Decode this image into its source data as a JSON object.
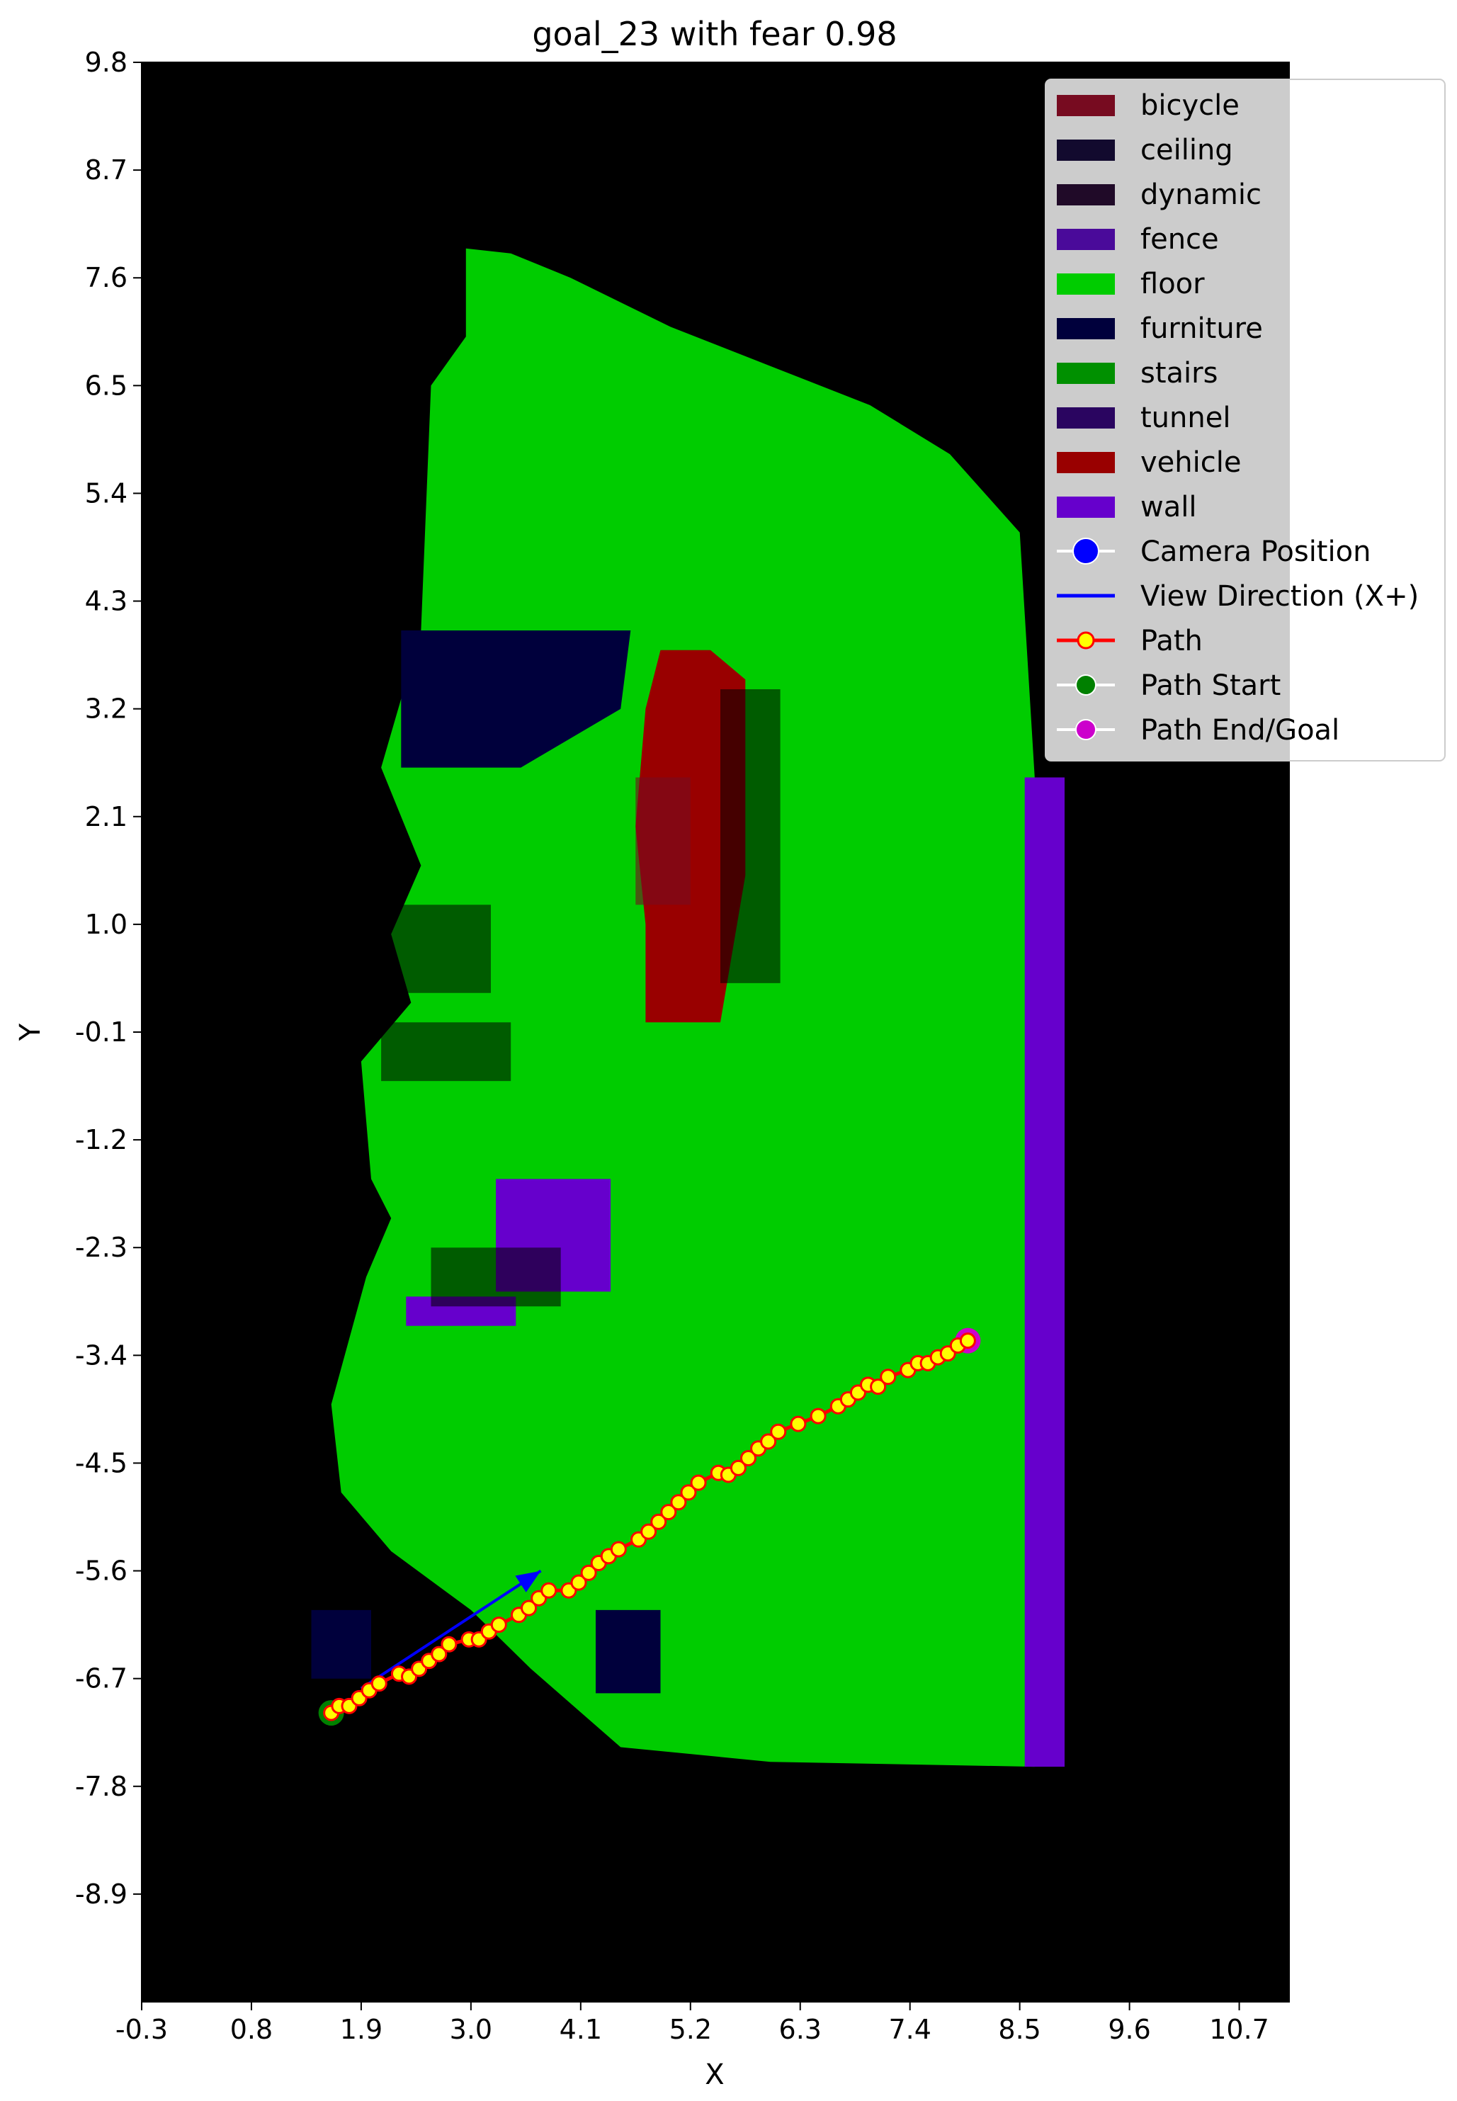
{
  "chart_data": {
    "type": "scatter",
    "title": "goal_23 with fear 0.98",
    "xlabel": "X",
    "ylabel": "Y",
    "xlim": [
      -0.3,
      11.2
    ],
    "ylim": [
      -10.0,
      9.8
    ],
    "xticks": [
      "-0.3",
      "0.8",
      "1.9",
      "3.0",
      "4.1",
      "5.2",
      "6.3",
      "7.4",
      "8.5",
      "9.6",
      "10.7"
    ],
    "yticks": [
      "9.8",
      "8.7",
      "7.6",
      "6.5",
      "5.4",
      "4.3",
      "3.2",
      "2.1",
      "1.0",
      "-0.1",
      "-1.2",
      "-2.3",
      "-3.4",
      "-4.5",
      "-5.6",
      "-6.7",
      "-7.8",
      "-8.9"
    ],
    "background_color": "#000000",
    "legend_position": "top-right",
    "legend": [
      {
        "label": "bicycle",
        "kind": "patch",
        "color": "#770b20"
      },
      {
        "label": "ceiling",
        "kind": "patch",
        "color": "#120a2e"
      },
      {
        "label": "dynamic",
        "kind": "patch",
        "color": "#200a28"
      },
      {
        "label": "fence",
        "kind": "patch",
        "color": "#4a0a9a"
      },
      {
        "label": "floor",
        "kind": "patch",
        "color": "#00cc00"
      },
      {
        "label": "furniture",
        "kind": "patch",
        "color": "#00003c"
      },
      {
        "label": "stairs",
        "kind": "patch",
        "color": "#009000"
      },
      {
        "label": "tunnel",
        "kind": "patch",
        "color": "#2a0560"
      },
      {
        "label": "vehicle",
        "kind": "patch",
        "color": "#990000"
      },
      {
        "label": "wall",
        "kind": "patch",
        "color": "#6600cc"
      },
      {
        "label": "Camera Position",
        "kind": "marker",
        "color": "#0000ff"
      },
      {
        "label": "View Direction (X+)",
        "kind": "line",
        "color": "#0000ff"
      },
      {
        "label": "Path",
        "kind": "path",
        "color": "#ff0000",
        "fill": "#ffff00"
      },
      {
        "label": "Path Start",
        "kind": "marker",
        "color": "#008000"
      },
      {
        "label": "Path End/Goal",
        "kind": "marker",
        "color": "#cc00cc"
      }
    ],
    "regions": {
      "floor": [
        [
          2.95,
          7.9
        ],
        [
          3.4,
          7.85
        ],
        [
          4.0,
          7.6
        ],
        [
          5.0,
          7.1
        ],
        [
          6.0,
          6.7
        ],
        [
          7.0,
          6.3
        ],
        [
          7.8,
          5.8
        ],
        [
          8.5,
          5.0
        ],
        [
          8.65,
          2.5
        ],
        [
          8.65,
          -7.6
        ],
        [
          6.0,
          -7.55
        ],
        [
          4.5,
          -7.4
        ],
        [
          3.6,
          -6.6
        ],
        [
          3.0,
          -6.0
        ],
        [
          2.2,
          -5.4
        ],
        [
          1.7,
          -4.8
        ],
        [
          1.6,
          -3.9
        ],
        [
          1.95,
          -2.6
        ],
        [
          2.2,
          -2.0
        ],
        [
          2.0,
          -1.6
        ],
        [
          1.9,
          -0.4
        ],
        [
          2.4,
          0.2
        ],
        [
          2.2,
          0.9
        ],
        [
          2.5,
          1.6
        ],
        [
          2.1,
          2.6
        ],
        [
          2.5,
          4.0
        ],
        [
          2.6,
          6.5
        ],
        [
          2.95,
          7.0
        ]
      ],
      "wall": [
        [
          [
            8.55,
            -7.6
          ],
          [
            8.95,
            -7.6
          ],
          [
            8.95,
            2.5
          ],
          [
            8.55,
            2.5
          ]
        ],
        [
          [
            3.25,
            -2.75
          ],
          [
            4.4,
            -2.75
          ],
          [
            4.4,
            -1.6
          ],
          [
            3.25,
            -1.6
          ]
        ],
        [
          [
            2.35,
            -3.1
          ],
          [
            3.45,
            -3.1
          ],
          [
            3.45,
            -2.8
          ],
          [
            2.35,
            -2.8
          ]
        ]
      ],
      "furniture": [
        [
          [
            2.3,
            2.6
          ],
          [
            3.5,
            2.6
          ],
          [
            4.5,
            3.2
          ],
          [
            4.6,
            4.0
          ],
          [
            2.3,
            4.0
          ]
        ],
        [
          [
            1.4,
            -6.7
          ],
          [
            2.0,
            -6.7
          ],
          [
            2.0,
            -6.0
          ],
          [
            1.4,
            -6.0
          ]
        ],
        [
          [
            4.25,
            -6.85
          ],
          [
            4.9,
            -6.85
          ],
          [
            4.9,
            -6.0
          ],
          [
            4.25,
            -6.0
          ]
        ]
      ],
      "vehicle": [
        [
          4.75,
          0.0
        ],
        [
          5.5,
          0.0
        ],
        [
          5.75,
          1.5
        ],
        [
          5.75,
          3.5
        ],
        [
          5.4,
          3.8
        ],
        [
          4.9,
          3.8
        ],
        [
          4.75,
          3.2
        ],
        [
          4.65,
          2.0
        ],
        [
          4.75,
          1.0
        ]
      ],
      "bicycle": [
        [
          4.65,
          1.2
        ],
        [
          5.2,
          1.2
        ],
        [
          5.2,
          2.5
        ],
        [
          4.65,
          2.5
        ]
      ],
      "dead_zone": [
        [
          [
            5.5,
            0.4
          ],
          [
            6.1,
            0.4
          ],
          [
            6.1,
            3.4
          ],
          [
            5.5,
            3.4
          ]
        ],
        [
          [
            2.2,
            0.3
          ],
          [
            3.2,
            0.3
          ],
          [
            3.2,
            1.2
          ],
          [
            2.2,
            1.2
          ]
        ],
        [
          [
            2.1,
            -0.6
          ],
          [
            3.4,
            -0.6
          ],
          [
            3.4,
            0.0
          ],
          [
            2.1,
            0.0
          ]
        ],
        [
          [
            2.6,
            -2.9
          ],
          [
            3.9,
            -2.9
          ],
          [
            3.9,
            -2.3
          ],
          [
            2.6,
            -2.3
          ]
        ]
      ]
    },
    "series": [
      {
        "name": "Path",
        "color": "#ff0000",
        "marker_fill": "#ffff00",
        "points": [
          [
            1.6,
            -7.05
          ],
          [
            1.68,
            -6.98
          ],
          [
            1.78,
            -6.98
          ],
          [
            1.88,
            -6.9
          ],
          [
            1.98,
            -6.82
          ],
          [
            2.08,
            -6.75
          ],
          [
            2.28,
            -6.65
          ],
          [
            2.38,
            -6.68
          ],
          [
            2.48,
            -6.6
          ],
          [
            2.58,
            -6.52
          ],
          [
            2.68,
            -6.45
          ],
          [
            2.78,
            -6.35
          ],
          [
            2.98,
            -6.3
          ],
          [
            3.08,
            -6.3
          ],
          [
            3.18,
            -6.22
          ],
          [
            3.28,
            -6.15
          ],
          [
            3.48,
            -6.05
          ],
          [
            3.58,
            -5.98
          ],
          [
            3.68,
            -5.88
          ],
          [
            3.78,
            -5.8
          ],
          [
            3.98,
            -5.8
          ],
          [
            4.08,
            -5.72
          ],
          [
            4.18,
            -5.62
          ],
          [
            4.28,
            -5.52
          ],
          [
            4.38,
            -5.45
          ],
          [
            4.48,
            -5.38
          ],
          [
            4.68,
            -5.28
          ],
          [
            4.78,
            -5.2
          ],
          [
            4.88,
            -5.1
          ],
          [
            4.98,
            -5.0
          ],
          [
            5.08,
            -4.9
          ],
          [
            5.18,
            -4.8
          ],
          [
            5.28,
            -4.7
          ],
          [
            5.48,
            -4.6
          ],
          [
            5.58,
            -4.62
          ],
          [
            5.68,
            -4.55
          ],
          [
            5.78,
            -4.45
          ],
          [
            5.88,
            -4.35
          ],
          [
            5.98,
            -4.28
          ],
          [
            6.08,
            -4.18
          ],
          [
            6.28,
            -4.1
          ],
          [
            6.48,
            -4.02
          ],
          [
            6.68,
            -3.92
          ],
          [
            6.78,
            -3.85
          ],
          [
            6.88,
            -3.78
          ],
          [
            6.98,
            -3.7
          ],
          [
            7.08,
            -3.72
          ],
          [
            7.18,
            -3.62
          ],
          [
            7.38,
            -3.55
          ],
          [
            7.48,
            -3.48
          ],
          [
            7.58,
            -3.48
          ],
          [
            7.68,
            -3.42
          ],
          [
            7.78,
            -3.38
          ],
          [
            7.88,
            -3.3
          ],
          [
            7.98,
            -3.25
          ]
        ]
      }
    ],
    "path_start": [
      1.6,
      -7.05
    ],
    "path_end": [
      7.98,
      -3.25
    ],
    "camera": {
      "x": 1.9,
      "y": -6.8,
      "arrow_end_x": 3.7,
      "arrow_end_y": -5.6
    }
  }
}
